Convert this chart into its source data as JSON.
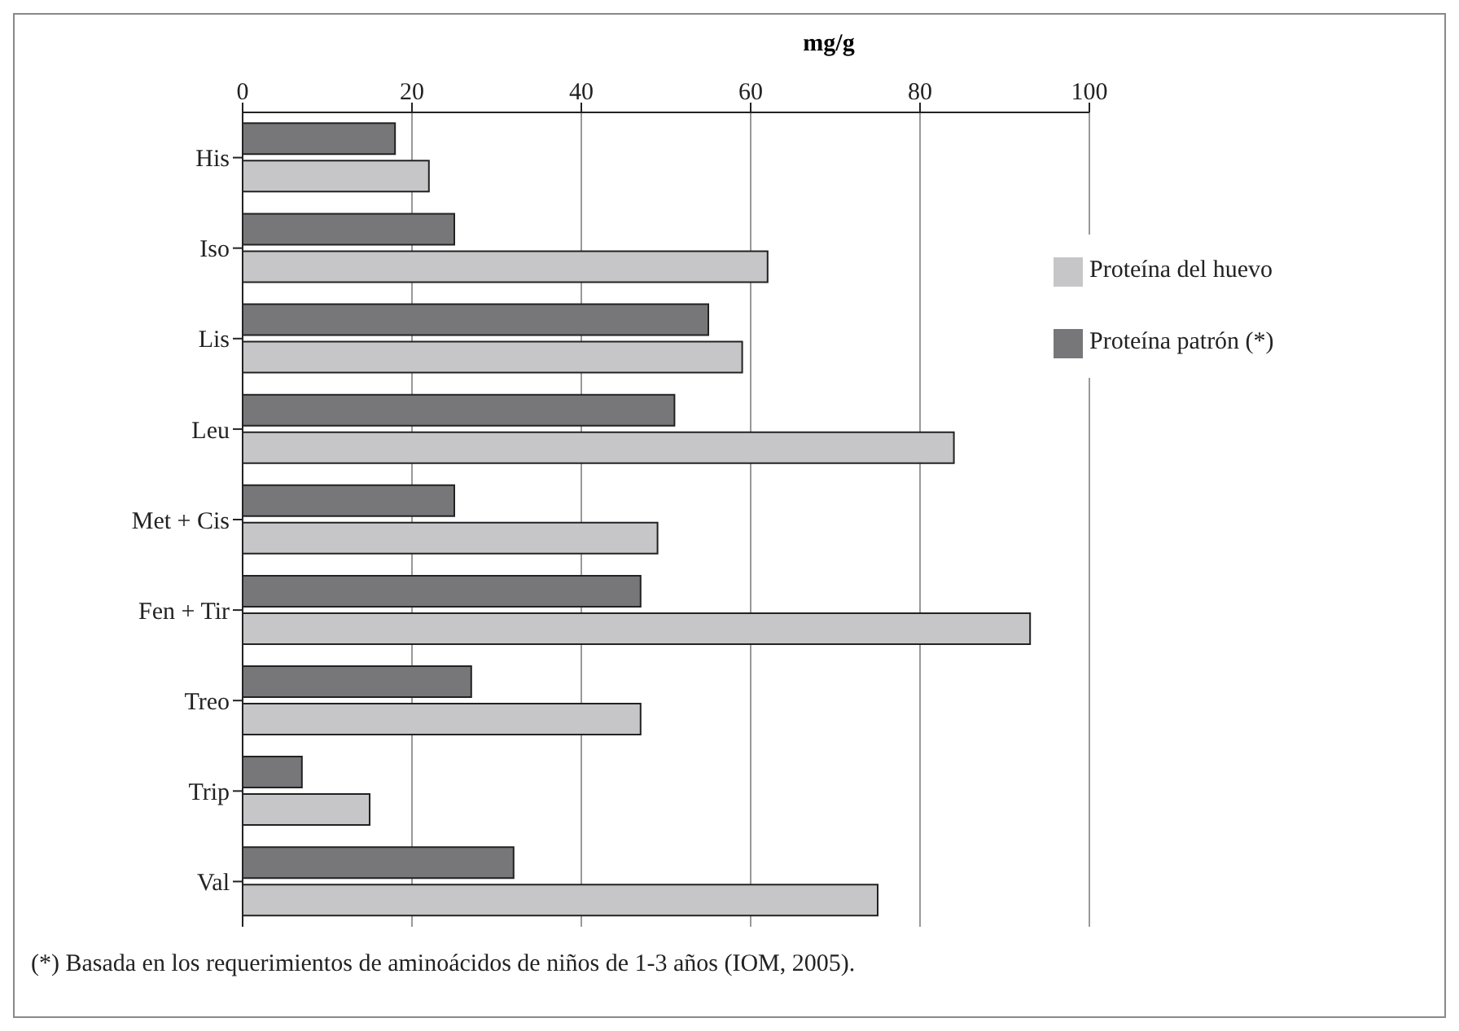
{
  "chart_data": {
    "type": "bar",
    "orientation": "horizontal",
    "xlabel": "mg/g",
    "categories": [
      "His",
      "Iso",
      "Lis",
      "Leu",
      "Met + Cis",
      "Fen + Tir",
      "Treo",
      "Trip",
      "Val"
    ],
    "series": [
      {
        "name": "Proteína patrón (*)",
        "color": "#77777a",
        "values": [
          18,
          25,
          55,
          51,
          25,
          47,
          27,
          7,
          32
        ]
      },
      {
        "name": "Proteína del huevo",
        "color": "#c6c6c8",
        "values": [
          22,
          62,
          59,
          84,
          49,
          93,
          47,
          15,
          75
        ]
      }
    ],
    "xlim": [
      0,
      100
    ],
    "xticks": [
      0,
      20,
      40,
      60,
      80,
      100
    ],
    "grid": "x",
    "legend": "top right",
    "annotations": [
      "(*) Basada en los requerimientos de aminoácidos de niños de 1-3 años (IOM, 2005)."
    ]
  }
}
